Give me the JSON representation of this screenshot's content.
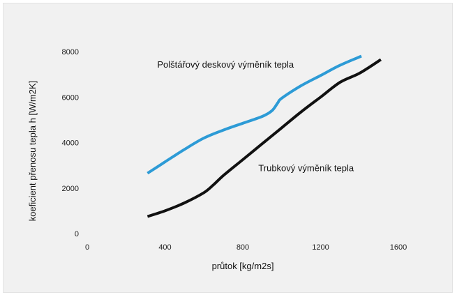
{
  "chart_data": {
    "type": "line",
    "title": "",
    "xlabel": "průtok [kg/m2s]",
    "ylabel": "koeficient přenosu tepla h [W/m2K]",
    "xlim": [
      0,
      1600
    ],
    "ylim": [
      0,
      8000
    ],
    "xticks": [
      0,
      400,
      800,
      1200,
      1600
    ],
    "yticks": [
      0,
      2000,
      4000,
      6000,
      8000
    ],
    "grid": false,
    "legend": "none",
    "series": [
      {
        "name": "Polštářový deskový výměník tepla",
        "color": "#2d9bd6",
        "x": [
          310,
          400,
          500,
          600,
          700,
          800,
          900,
          950,
          980,
          1000,
          1100,
          1200,
          1300,
          1410
        ],
        "y": [
          2650,
          3150,
          3700,
          4200,
          4550,
          4850,
          5150,
          5400,
          5750,
          5950,
          6500,
          6950,
          7400,
          7800
        ]
      },
      {
        "name": "Trubkový výměník tepla",
        "color": "#111111",
        "x": [
          310,
          400,
          500,
          600,
          650,
          700,
          800,
          900,
          1000,
          1100,
          1200,
          1300,
          1400,
          1510
        ],
        "y": [
          750,
          1000,
          1350,
          1800,
          2150,
          2550,
          3250,
          3950,
          4650,
          5350,
          6000,
          6650,
          7050,
          7650
        ]
      }
    ],
    "annotations": [
      {
        "text": "Polštářový deskový výměník tepla",
        "x": 360,
        "y": 7300
      },
      {
        "text": "Trubkový výměník tepla",
        "x": 880,
        "y": 2750
      }
    ]
  }
}
